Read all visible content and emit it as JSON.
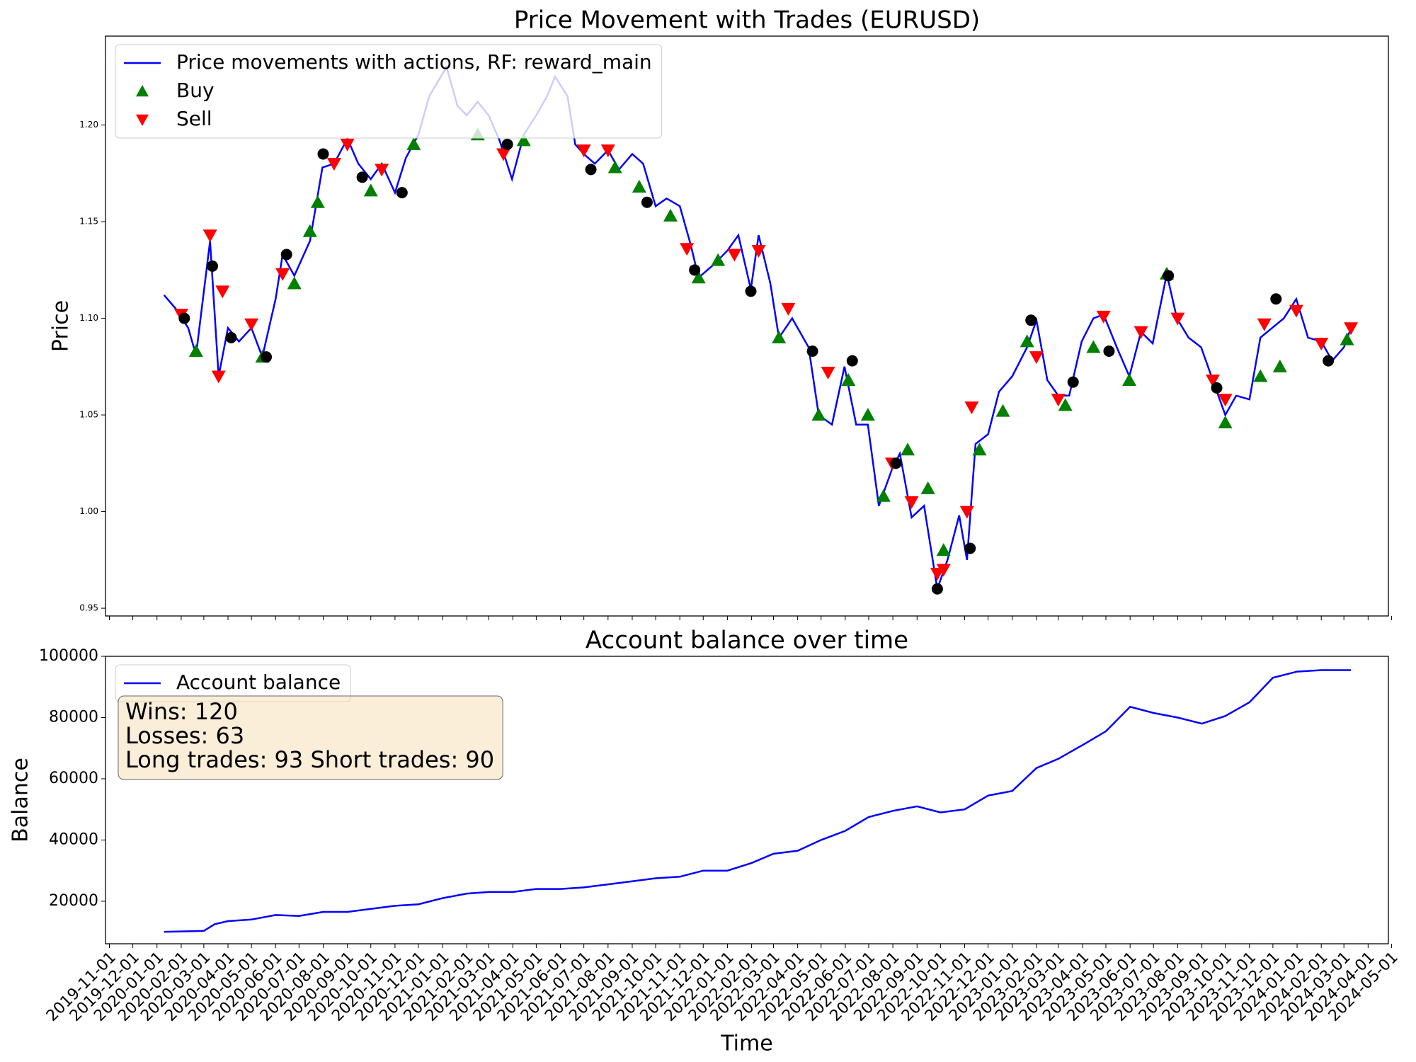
{
  "chart_data": [
    {
      "type": "line",
      "title": "Price Movement with Trades (EURUSD)",
      "ylabel": "Price",
      "legend": "upper left",
      "xlim": [
        "2019-10-27",
        "2024-04-27"
      ],
      "ylim": [
        0.946,
        1.246
      ],
      "yticks": [
        0.95,
        {
          "value": 1,
          "label": "1.00"
        },
        1.05,
        {
          "value": 1.1,
          "label": "1.10"
        },
        1.15,
        {
          "value": 1.2,
          "label": "1.20"
        }
      ],
      "series": [
        {
          "name": "Price movements with actions, RF: reward_main",
          "color": "#0000ff",
          "x": [
            "2020-01-10",
            "2020-01-25",
            "2020-02-10",
            "2020-02-20",
            "2020-03-09",
            "2020-03-20",
            "2020-04-01",
            "2020-04-15",
            "2020-05-01",
            "2020-05-15",
            "2020-06-01",
            "2020-06-10",
            "2020-06-25",
            "2020-07-15",
            "2020-07-31",
            "2020-08-15",
            "2020-09-01",
            "2020-09-15",
            "2020-10-01",
            "2020-10-15",
            "2020-11-01",
            "2020-11-15",
            "2020-12-01",
            "2020-12-15",
            "2021-01-06",
            "2021-01-20",
            "2021-02-01",
            "2021-02-15",
            "2021-03-01",
            "2021-03-15",
            "2021-03-31",
            "2021-04-15",
            "2021-05-01",
            "2021-05-15",
            "2021-05-25",
            "2021-06-10",
            "2021-06-20",
            "2021-07-01",
            "2021-07-15",
            "2021-08-01",
            "2021-08-15",
            "2021-09-01",
            "2021-09-15",
            "2021-10-01",
            "2021-10-15",
            "2021-11-01",
            "2021-11-15",
            "2021-11-25",
            "2021-12-15",
            "2022-01-01",
            "2022-01-15",
            "2022-01-31",
            "2022-02-10",
            "2022-02-25",
            "2022-03-08",
            "2022-03-25",
            "2022-04-15",
            "2022-04-28",
            "2022-05-15",
            "2022-05-31",
            "2022-06-15",
            "2022-06-30",
            "2022-07-14",
            "2022-07-31",
            "2022-08-10",
            "2022-08-25",
            "2022-09-10",
            "2022-09-27",
            "2022-10-10",
            "2022-10-25",
            "2022-11-04",
            "2022-11-15",
            "2022-12-01",
            "2022-12-15",
            "2023-01-01",
            "2023-01-20",
            "2023-02-01",
            "2023-02-15",
            "2023-03-01",
            "2023-03-15",
            "2023-03-31",
            "2023-04-15",
            "2023-04-28",
            "2023-05-15",
            "2023-05-31",
            "2023-06-15",
            "2023-06-30",
            "2023-07-18",
            "2023-07-31",
            "2023-08-15",
            "2023-08-31",
            "2023-09-15",
            "2023-10-01",
            "2023-10-15",
            "2023-11-01",
            "2023-11-15",
            "2023-11-30",
            "2023-12-15",
            "2023-12-31",
            "2024-01-15",
            "2024-02-01",
            "2024-02-15",
            "2024-03-01",
            "2024-03-10"
          ],
          "values": [
            1.112,
            1.105,
            1.095,
            1.081,
            1.14,
            1.07,
            1.095,
            1.088,
            1.095,
            1.08,
            1.11,
            1.133,
            1.122,
            1.14,
            1.178,
            1.18,
            1.193,
            1.18,
            1.172,
            1.18,
            1.165,
            1.183,
            1.195,
            1.215,
            1.23,
            1.21,
            1.205,
            1.212,
            1.205,
            1.192,
            1.172,
            1.195,
            1.205,
            1.215,
            1.225,
            1.215,
            1.19,
            1.185,
            1.18,
            1.187,
            1.177,
            1.185,
            1.18,
            1.158,
            1.162,
            1.158,
            1.138,
            1.121,
            1.128,
            1.135,
            1.143,
            1.115,
            1.143,
            1.118,
            1.09,
            1.1,
            1.085,
            1.05,
            1.045,
            1.075,
            1.045,
            1.045,
            1.003,
            1.022,
            1.03,
            0.997,
            1.003,
            0.96,
            0.975,
            0.998,
            0.975,
            1.035,
            1.04,
            1.062,
            1.07,
            1.085,
            1.099,
            1.068,
            1.06,
            1.06,
            1.088,
            1.1,
            1.102,
            1.085,
            1.07,
            1.093,
            1.087,
            1.123,
            1.1,
            1.09,
            1.085,
            1.068,
            1.05,
            1.06,
            1.058,
            1.09,
            1.095,
            1.1,
            1.11,
            1.09,
            1.088,
            1.078,
            1.085,
            1.095
          ]
        },
        {
          "name": "Buy",
          "color": "#008000",
          "marker": "^",
          "x": [
            "2020-02-20",
            "2020-05-15",
            "2020-06-25",
            "2020-07-15",
            "2020-07-25",
            "2020-10-01",
            "2020-11-25",
            "2021-02-15",
            "2021-04-15",
            "2021-08-10",
            "2021-09-10",
            "2021-10-20",
            "2021-11-25",
            "2021-12-20",
            "2022-03-08",
            "2022-04-28",
            "2022-06-05",
            "2022-06-30",
            "2022-07-20",
            "2022-08-20",
            "2022-09-15",
            "2022-10-05",
            "2022-11-20",
            "2022-12-20",
            "2023-01-20",
            "2023-03-10",
            "2023-04-15",
            "2023-05-31",
            "2023-07-18",
            "2023-10-01",
            "2023-11-15",
            "2023-12-10",
            "2024-03-05"
          ],
          "values": [
            1.083,
            1.08,
            1.118,
            1.145,
            1.16,
            1.166,
            1.19,
            1.195,
            1.192,
            1.178,
            1.168,
            1.153,
            1.121,
            1.13,
            1.09,
            1.05,
            1.068,
            1.05,
            1.008,
            1.032,
            1.012,
            0.98,
            1.032,
            1.052,
            1.088,
            1.055,
            1.085,
            1.068,
            1.123,
            1.046,
            1.07,
            1.075,
            1.089
          ]
        },
        {
          "name": "Sell",
          "color": "#ff0000",
          "marker": "v",
          "x": [
            "2020-02-01",
            "2020-03-09",
            "2020-03-20",
            "2020-03-25",
            "2020-05-01",
            "2020-06-10",
            "2020-08-15",
            "2020-09-01",
            "2020-10-15",
            "2021-03-20",
            "2021-07-01",
            "2021-08-01",
            "2021-11-10",
            "2022-01-10",
            "2022-02-10",
            "2022-03-20",
            "2022-05-10",
            "2022-07-31",
            "2022-08-25",
            "2022-09-27",
            "2022-10-05",
            "2022-11-04",
            "2022-11-10",
            "2023-02-01",
            "2023-03-01",
            "2023-04-28",
            "2023-06-15",
            "2023-08-01",
            "2023-09-15",
            "2023-10-01",
            "2023-11-20",
            "2023-12-31",
            "2024-02-01",
            "2024-03-10"
          ],
          "values": [
            1.102,
            1.143,
            1.07,
            1.114,
            1.097,
            1.123,
            1.18,
            1.19,
            1.177,
            1.185,
            1.187,
            1.187,
            1.136,
            1.133,
            1.135,
            1.105,
            1.072,
            1.025,
            1.005,
            0.968,
            0.97,
            1.0,
            1.054,
            1.08,
            1.058,
            1.101,
            1.093,
            1.1,
            1.068,
            1.058,
            1.097,
            1.104,
            1.087,
            1.095
          ]
        },
        {
          "color": "#000000",
          "marker": "o",
          "x": [
            "2020-02-05",
            "2020-03-12",
            "2020-04-05",
            "2020-05-20",
            "2020-06-15",
            "2020-08-01",
            "2020-09-20",
            "2020-11-10",
            "2021-03-25",
            "2021-07-10",
            "2021-09-20",
            "2021-11-20",
            "2022-01-31",
            "2022-04-20",
            "2022-06-10",
            "2022-08-05",
            "2022-09-27",
            "2022-11-08",
            "2023-01-25",
            "2023-03-20",
            "2023-05-05",
            "2023-07-20",
            "2023-09-20",
            "2023-12-05",
            "2024-02-10"
          ],
          "values": [
            1.1,
            1.127,
            1.09,
            1.08,
            1.133,
            1.185,
            1.173,
            1.165,
            1.19,
            1.177,
            1.16,
            1.125,
            1.114,
            1.083,
            1.078,
            1.025,
            0.96,
            0.981,
            1.099,
            1.067,
            1.083,
            1.122,
            1.064,
            1.11,
            1.078
          ]
        }
      ]
    },
    {
      "type": "line",
      "title": "Account balance over time",
      "xlabel": "Time",
      "ylabel": "Balance",
      "legend": "upper left",
      "annotation": [
        "Wins: 120",
        "Losses: 63",
        "Long trades: 93 Short trades: 90"
      ],
      "xlim": [
        "2019-10-27",
        "2024-04-27"
      ],
      "ylim": [
        6100,
        100000
      ],
      "yticks": [
        20000,
        40000,
        60000,
        80000,
        100000
      ],
      "xticks": [
        "2019-11-01",
        "2019-12-01",
        "2020-01-01",
        "2020-02-01",
        "2020-03-01",
        "2020-04-01",
        "2020-05-01",
        "2020-06-01",
        "2020-07-01",
        "2020-08-01",
        "2020-09-01",
        "2020-10-01",
        "2020-11-01",
        "2020-12-01",
        "2021-01-01",
        "2021-02-01",
        "2021-03-01",
        "2021-04-01",
        "2021-05-01",
        "2021-06-01",
        "2021-07-01",
        "2021-08-01",
        "2021-09-01",
        "2021-10-01",
        "2021-11-01",
        "2021-12-01",
        "2022-01-01",
        "2022-02-01",
        "2022-03-01",
        "2022-04-01",
        "2022-05-01",
        "2022-06-01",
        "2022-07-01",
        "2022-08-01",
        "2022-09-01",
        "2022-10-01",
        "2022-11-01",
        "2022-12-01",
        "2023-01-01",
        "2023-02-01",
        "2023-03-01",
        "2023-04-01",
        "2023-05-01",
        "2023-06-01",
        "2023-07-01",
        "2023-08-01",
        "2023-09-01",
        "2023-10-01",
        "2023-11-01",
        "2023-12-01",
        "2024-01-01",
        "2024-02-01",
        "2024-03-01",
        "2024-04-01",
        "2024-05-01"
      ],
      "series": [
        {
          "name": "Account balance",
          "color": "#0000ff",
          "x": [
            "2020-01-10",
            "2020-02-15",
            "2020-03-01",
            "2020-03-15",
            "2020-04-01",
            "2020-05-01",
            "2020-06-01",
            "2020-07-01",
            "2020-08-01",
            "2020-09-01",
            "2020-10-01",
            "2020-11-01",
            "2020-12-01",
            "2021-01-01",
            "2021-02-01",
            "2021-03-01",
            "2021-04-01",
            "2021-05-01",
            "2021-06-01",
            "2021-07-01",
            "2021-08-01",
            "2021-09-01",
            "2021-10-01",
            "2021-11-01",
            "2021-12-01",
            "2022-01-01",
            "2022-02-01",
            "2022-03-01",
            "2022-04-01",
            "2022-05-01",
            "2022-06-01",
            "2022-07-01",
            "2022-08-01",
            "2022-09-01",
            "2022-10-01",
            "2022-11-01",
            "2022-12-01",
            "2023-01-01",
            "2023-02-01",
            "2023-03-01",
            "2023-04-01",
            "2023-05-01",
            "2023-06-01",
            "2023-07-01",
            "2023-08-01",
            "2023-09-01",
            "2023-10-01",
            "2023-11-01",
            "2023-12-01",
            "2024-01-01",
            "2024-02-01",
            "2024-03-10"
          ],
          "values": [
            10000,
            10200,
            10300,
            12500,
            13500,
            14000,
            15500,
            15200,
            16500,
            16500,
            17500,
            18500,
            19000,
            21000,
            22500,
            23000,
            23000,
            24000,
            24000,
            24500,
            25500,
            26500,
            27500,
            28000,
            30000,
            30000,
            32500,
            35500,
            36500,
            40000,
            43000,
            47500,
            49500,
            51000,
            49000,
            50000,
            54500,
            56000,
            63500,
            66500,
            71000,
            75500,
            83500,
            81500,
            80000,
            78000,
            80500,
            85000,
            93000,
            95000,
            95500,
            95500
          ]
        }
      ]
    }
  ]
}
